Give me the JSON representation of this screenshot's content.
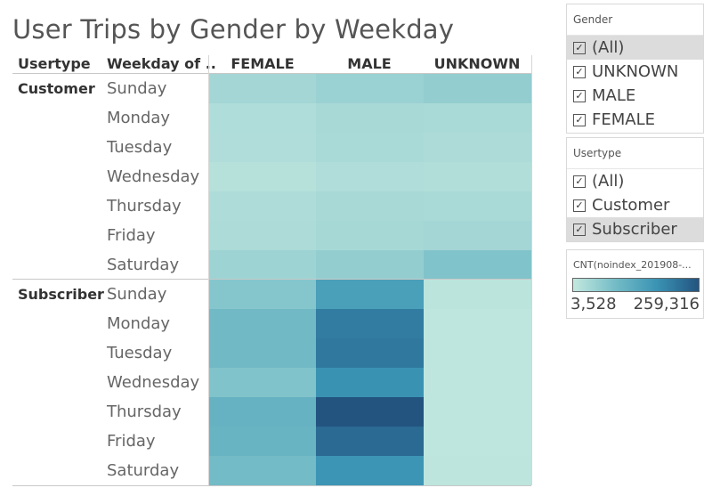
{
  "title": "User Trips by Gender by Weekday",
  "headers": {
    "usertype": "Usertype",
    "weekday": "Weekday of ..",
    "cols": [
      "FEMALE",
      "MALE",
      "UNKNOWN"
    ]
  },
  "chart_data": {
    "type": "heatmap",
    "title": "User Trips by Gender by Weekday",
    "columns": [
      "FEMALE",
      "MALE",
      "UNKNOWN"
    ],
    "groups": [
      {
        "name": "Customer",
        "rows": [
          {
            "label": "Sunday",
            "values": [
              38000,
              48000,
              55000
            ]
          },
          {
            "label": "Monday",
            "values": [
              25000,
              32000,
              30000
            ]
          },
          {
            "label": "Tuesday",
            "values": [
              24000,
              30000,
              28000
            ]
          },
          {
            "label": "Wednesday",
            "values": [
              18000,
              24000,
              22000
            ]
          },
          {
            "label": "Thursday",
            "values": [
              26000,
              33000,
              30000
            ]
          },
          {
            "label": "Friday",
            "values": [
              28000,
              35000,
              38000
            ]
          },
          {
            "label": "Saturday",
            "values": [
              45000,
              55000,
              75000
            ]
          }
        ]
      },
      {
        "name": "Subscriber",
        "rows": [
          {
            "label": "Sunday",
            "values": [
              70000,
              150000,
              12000
            ]
          },
          {
            "label": "Monday",
            "values": [
              95000,
              205000,
              8000
            ]
          },
          {
            "label": "Tuesday",
            "values": [
              95000,
              210000,
              8000
            ]
          },
          {
            "label": "Wednesday",
            "values": [
              75000,
              175000,
              8000
            ]
          },
          {
            "label": "Thursday",
            "values": [
              110000,
              259316,
              8000
            ]
          },
          {
            "label": "Friday",
            "values": [
              105000,
              230000,
              8000
            ]
          },
          {
            "label": "Saturday",
            "values": [
              90000,
              170000,
              10000
            ]
          }
        ]
      }
    ],
    "color_scale": {
      "min": 3528,
      "max": 259316,
      "colors": [
        "#c3e8df",
        "#74bcc6",
        "#3a93b4",
        "#235480"
      ]
    }
  },
  "filters": {
    "gender": {
      "title": "Gender",
      "items": [
        {
          "label": "(All)",
          "checked": true,
          "selected": true
        },
        {
          "label": "UNKNOWN",
          "checked": true,
          "selected": false
        },
        {
          "label": "MALE",
          "checked": true,
          "selected": false
        },
        {
          "label": "FEMALE",
          "checked": true,
          "selected": false
        }
      ]
    },
    "usertype": {
      "title": "Usertype",
      "items": [
        {
          "label": "(All)",
          "checked": true,
          "selected": false
        },
        {
          "label": "Customer",
          "checked": true,
          "selected": false
        },
        {
          "label": "Subscriber",
          "checked": true,
          "selected": true
        }
      ]
    }
  },
  "legend": {
    "title": "CNT(noindex_201908-...",
    "min_label": "3,528",
    "max_label": "259,316"
  }
}
